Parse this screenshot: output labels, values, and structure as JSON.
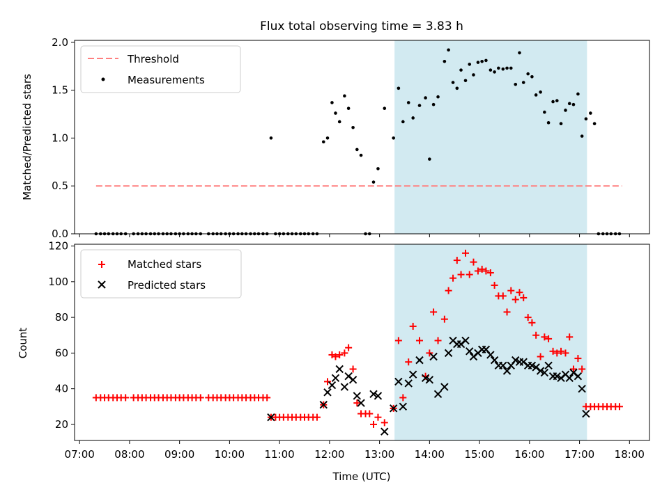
{
  "title": "Flux total observing time = 3.83 h",
  "xlabel": "Time (UTC)",
  "colors": {
    "threshold": "#ff7f7f",
    "measurement": "#000000",
    "matched": "#ff0000",
    "predicted": "#000000",
    "shade": "#add8e6"
  },
  "chart_data": [
    {
      "type": "scatter",
      "name": "ratio-panel",
      "ylabel": "Matched/Predicted stars",
      "xlim": [
        6.9,
        18.4
      ],
      "ylim": [
        0,
        2.02
      ],
      "yticks": [
        0.0,
        0.5,
        1.0,
        1.5,
        2.0
      ],
      "ytick_labels": [
        "0.0",
        "0.5",
        "1.0",
        "1.5",
        "2.0"
      ],
      "shaded_span": [
        13.3,
        17.15
      ],
      "legend": [
        "Threshold",
        "Measurements"
      ],
      "threshold": {
        "name": "Threshold",
        "x": [
          7.33,
          17.85
        ],
        "y": 0.5
      },
      "series": [
        {
          "name": "Measurements",
          "x": [
            7.33,
            7.42,
            7.5,
            7.58,
            7.67,
            7.75,
            7.83,
            7.92,
            8.08,
            8.17,
            8.25,
            8.33,
            8.42,
            8.5,
            8.58,
            8.67,
            8.75,
            8.83,
            8.92,
            9.0,
            9.08,
            9.17,
            9.25,
            9.33,
            9.42,
            9.58,
            9.67,
            9.75,
            9.83,
            9.92,
            10.0,
            10.08,
            10.17,
            10.25,
            10.33,
            10.42,
            10.5,
            10.58,
            10.67,
            10.75,
            10.83,
            10.92,
            11.0,
            11.08,
            11.17,
            11.25,
            11.33,
            11.42,
            11.5,
            11.58,
            11.67,
            11.75,
            11.88,
            11.96,
            12.05,
            12.12,
            12.2,
            12.3,
            12.38,
            12.47,
            12.55,
            12.63,
            12.72,
            12.8,
            12.88,
            12.97,
            13.1,
            13.28,
            13.38,
            13.47,
            13.58,
            13.67,
            13.8,
            13.92,
            14.0,
            14.08,
            14.17,
            14.3,
            14.38,
            14.47,
            14.55,
            14.63,
            14.72,
            14.8,
            14.88,
            14.97,
            15.05,
            15.13,
            15.22,
            15.3,
            15.38,
            15.47,
            15.55,
            15.63,
            15.72,
            15.8,
            15.88,
            15.97,
            16.05,
            16.13,
            16.22,
            16.3,
            16.38,
            16.47,
            16.55,
            16.63,
            16.72,
            16.8,
            16.88,
            16.97,
            17.05,
            17.13,
            17.22,
            17.3,
            17.38,
            17.47,
            17.55,
            17.63,
            17.72,
            17.8
          ],
          "y": [
            0,
            0,
            0,
            0,
            0,
            0,
            0,
            0,
            0,
            0,
            0,
            0,
            0,
            0,
            0,
            0,
            0,
            0,
            0,
            0,
            0,
            0,
            0,
            0,
            0,
            0,
            0,
            0,
            0,
            0,
            0,
            0,
            0,
            0,
            0,
            0,
            0,
            0,
            0,
            0,
            1.0,
            0,
            0,
            0,
            0,
            0,
            0,
            0,
            0,
            0,
            0,
            0,
            0.96,
            1.0,
            1.37,
            1.26,
            1.17,
            1.44,
            1.31,
            1.11,
            0.88,
            0.82,
            0,
            0,
            0.54,
            0.68,
            1.31,
            1.0,
            1.52,
            1.17,
            1.37,
            1.21,
            1.34,
            1.42,
            0.78,
            1.35,
            1.43,
            1.8,
            1.92,
            1.58,
            1.52,
            1.71,
            1.6,
            1.77,
            1.66,
            1.79,
            1.8,
            1.81,
            1.71,
            1.69,
            1.73,
            1.72,
            1.73,
            1.73,
            1.56,
            1.89,
            1.58,
            1.67,
            1.64,
            1.45,
            1.48,
            1.27,
            1.16,
            1.38,
            1.39,
            1.15,
            1.29,
            1.36,
            1.35,
            1.46,
            1.02,
            1.2,
            1.26,
            1.15,
            0,
            0,
            0,
            0,
            0,
            0
          ]
        }
      ]
    },
    {
      "type": "scatter",
      "name": "count-panel",
      "ylabel": "Count",
      "xlim": [
        6.9,
        18.4
      ],
      "ylim": [
        11,
        121
      ],
      "yticks": [
        20,
        40,
        60,
        80,
        100,
        120
      ],
      "ytick_labels": [
        "20",
        "40",
        "60",
        "80",
        "100",
        "120"
      ],
      "xticks": [
        7,
        8,
        9,
        10,
        11,
        12,
        13,
        14,
        15,
        16,
        17,
        18
      ],
      "xtick_labels": [
        "07:00",
        "08:00",
        "09:00",
        "10:00",
        "11:00",
        "12:00",
        "13:00",
        "14:00",
        "15:00",
        "16:00",
        "17:00",
        "18:00"
      ],
      "shaded_span": [
        13.3,
        17.15
      ],
      "legend": [
        "Matched stars",
        "Predicted stars"
      ],
      "series": [
        {
          "name": "Matched stars",
          "marker": "+",
          "x": [
            7.33,
            7.42,
            7.5,
            7.58,
            7.67,
            7.75,
            7.83,
            7.92,
            8.08,
            8.17,
            8.25,
            8.33,
            8.42,
            8.5,
            8.58,
            8.67,
            8.75,
            8.83,
            8.92,
            9.0,
            9.08,
            9.17,
            9.25,
            9.33,
            9.42,
            9.58,
            9.67,
            9.75,
            9.83,
            9.92,
            10.0,
            10.08,
            10.17,
            10.25,
            10.33,
            10.42,
            10.5,
            10.58,
            10.67,
            10.75,
            10.83,
            10.92,
            11.0,
            11.08,
            11.17,
            11.25,
            11.33,
            11.42,
            11.5,
            11.58,
            11.67,
            11.75,
            11.88,
            11.96,
            12.05,
            12.12,
            12.2,
            12.3,
            12.38,
            12.47,
            12.55,
            12.63,
            12.72,
            12.8,
            12.88,
            12.97,
            13.1,
            13.28,
            13.38,
            13.47,
            13.58,
            13.67,
            13.8,
            13.92,
            14.0,
            14.08,
            14.17,
            14.3,
            14.38,
            14.47,
            14.55,
            14.63,
            14.72,
            14.8,
            14.88,
            14.97,
            15.05,
            15.13,
            15.22,
            15.3,
            15.38,
            15.47,
            15.55,
            15.63,
            15.72,
            15.8,
            15.88,
            15.97,
            16.05,
            16.13,
            16.22,
            16.3,
            16.38,
            16.47,
            16.55,
            16.63,
            16.72,
            16.8,
            16.88,
            16.97,
            17.05,
            17.13,
            17.22,
            17.3,
            17.38,
            17.47,
            17.55,
            17.63,
            17.72,
            17.8
          ],
          "y": [
            35,
            35,
            35,
            35,
            35,
            35,
            35,
            35,
            35,
            35,
            35,
            35,
            35,
            35,
            35,
            35,
            35,
            35,
            35,
            35,
            35,
            35,
            35,
            35,
            35,
            35,
            35,
            35,
            35,
            35,
            35,
            35,
            35,
            35,
            35,
            35,
            35,
            35,
            35,
            35,
            24,
            24,
            24,
            24,
            24,
            24,
            24,
            24,
            24,
            24,
            24,
            24,
            31,
            44,
            59,
            58,
            59,
            60,
            63,
            51,
            32,
            26,
            26,
            26,
            20,
            24,
            21,
            29,
            67,
            35,
            55,
            75,
            67,
            47,
            60,
            83,
            67,
            79,
            95,
            102,
            112,
            104,
            116,
            104,
            111,
            106,
            107,
            106,
            105,
            98,
            92,
            92,
            83,
            95,
            90,
            94,
            91,
            80,
            77,
            70,
            58,
            69,
            68,
            61,
            60,
            61,
            60,
            69,
            51,
            57,
            51,
            30,
            30,
            30,
            30,
            30,
            30,
            30,
            30,
            30
          ]
        },
        {
          "name": "Predicted stars",
          "marker": "x",
          "x": [
            10.83,
            11.88,
            11.96,
            12.05,
            12.12,
            12.2,
            12.3,
            12.38,
            12.47,
            12.55,
            12.63,
            12.88,
            12.97,
            13.1,
            13.28,
            13.38,
            13.47,
            13.58,
            13.67,
            13.8,
            13.92,
            14.0,
            14.08,
            14.17,
            14.3,
            14.38,
            14.47,
            14.55,
            14.63,
            14.72,
            14.8,
            14.88,
            14.97,
            15.05,
            15.13,
            15.22,
            15.3,
            15.38,
            15.47,
            15.55,
            15.63,
            15.72,
            15.8,
            15.88,
            15.97,
            16.05,
            16.13,
            16.22,
            16.3,
            16.38,
            16.47,
            16.55,
            16.63,
            16.72,
            16.8,
            16.88,
            16.97,
            17.05,
            17.13
          ],
          "y": [
            24,
            31,
            38,
            42,
            46,
            51,
            41,
            47,
            45,
            36,
            32,
            37,
            36,
            16,
            29,
            44,
            30,
            43,
            48,
            56,
            46,
            45,
            58,
            37,
            41,
            60,
            67,
            65,
            65,
            67,
            61,
            58,
            60,
            62,
            62,
            59,
            56,
            53,
            53,
            50,
            53,
            56,
            55,
            55,
            53,
            53,
            52,
            50,
            49,
            53,
            47,
            47,
            46,
            48,
            46,
            49,
            47,
            40,
            26
          ]
        }
      ]
    }
  ]
}
